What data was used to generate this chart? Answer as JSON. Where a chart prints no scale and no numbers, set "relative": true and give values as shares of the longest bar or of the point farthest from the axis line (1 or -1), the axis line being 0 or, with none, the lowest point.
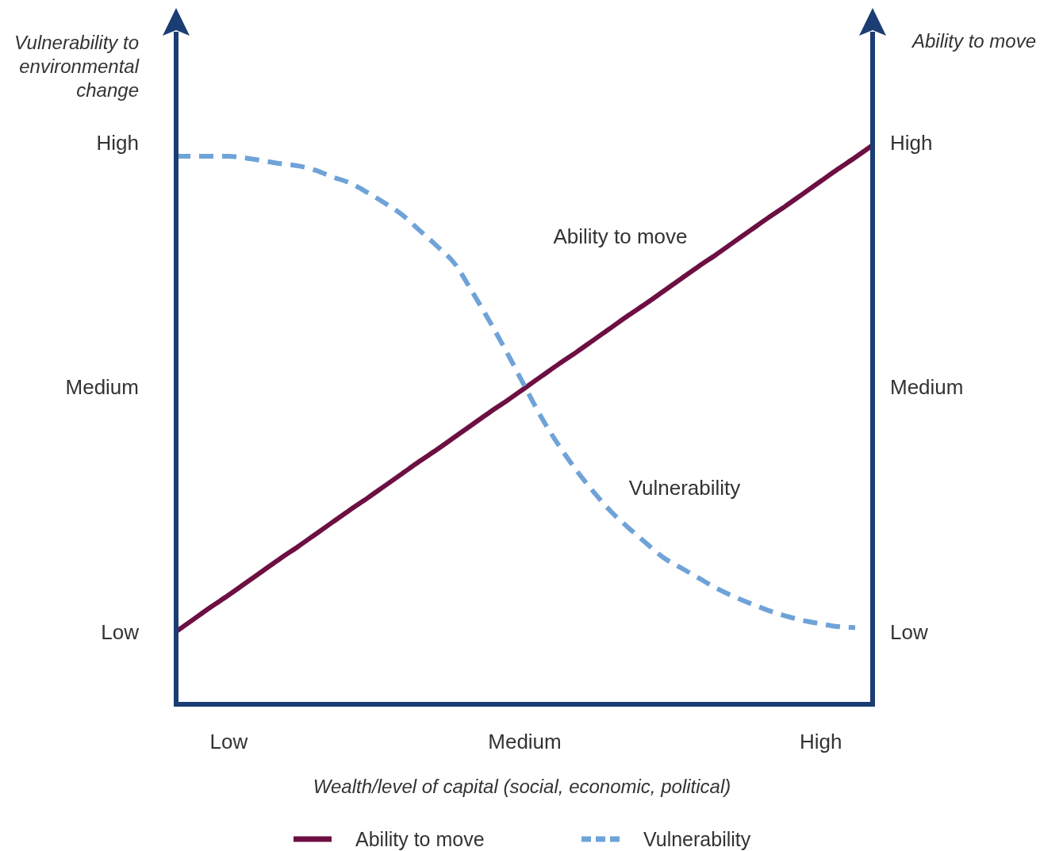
{
  "chart_data": {
    "type": "line",
    "xlabel": "Wealth/level of capital (social, economic, political)",
    "ylabel": "Vulnerability to environmental change",
    "relative": true,
    "categories": [
      null,
      null,
      null,
      "Low",
      null,
      null,
      null,
      null,
      null,
      null,
      null,
      null,
      null,
      null,
      null,
      null,
      null,
      null,
      null,
      null,
      "Medium",
      null,
      null,
      null,
      null,
      null,
      null,
      null,
      null,
      null,
      null,
      null,
      null,
      null,
      null,
      null,
      null,
      "High",
      null,
      null,
      null
    ],
    "series": [
      {
        "name": "Ability to move",
        "color": "#6d0f42",
        "line_style": "solid",
        "values": [
          0.13,
          0.152,
          0.174,
          0.195,
          0.217,
          0.239,
          0.261,
          0.282,
          0.304,
          0.326,
          0.348,
          0.369,
          0.391,
          0.413,
          0.435,
          0.456,
          0.478,
          0.5,
          0.522,
          0.543,
          0.565,
          0.587,
          0.609,
          0.63,
          0.652,
          0.674,
          0.696,
          0.717,
          0.739,
          0.761,
          0.783,
          0.804,
          0.826,
          0.848,
          0.87,
          0.891,
          0.913,
          0.935,
          0.957,
          0.978,
          1.0
        ]
      },
      {
        "name": "Vulnerability",
        "color": "#6fa3d8",
        "line_style": "dashed",
        "values": [
          0.98,
          0.98,
          0.98,
          0.98,
          0.977,
          0.972,
          0.967,
          0.963,
          0.955,
          0.943,
          0.932,
          0.915,
          0.896,
          0.875,
          0.847,
          0.819,
          0.788,
          0.738,
          0.685,
          0.629,
          0.57,
          0.512,
          0.462,
          0.418,
          0.379,
          0.344,
          0.315,
          0.288,
          0.262,
          0.244,
          0.226,
          0.208,
          0.193,
          0.18,
          0.168,
          0.158,
          0.15,
          0.144,
          0.139,
          0.137,
          null
        ]
      }
    ],
    "annotations": [
      "High",
      "Medium",
      "Low",
      "High",
      "Medium",
      "Low",
      "Ability to move",
      "Vulnerability",
      "Ability to move"
    ],
    "legend": "bottom"
  }
}
